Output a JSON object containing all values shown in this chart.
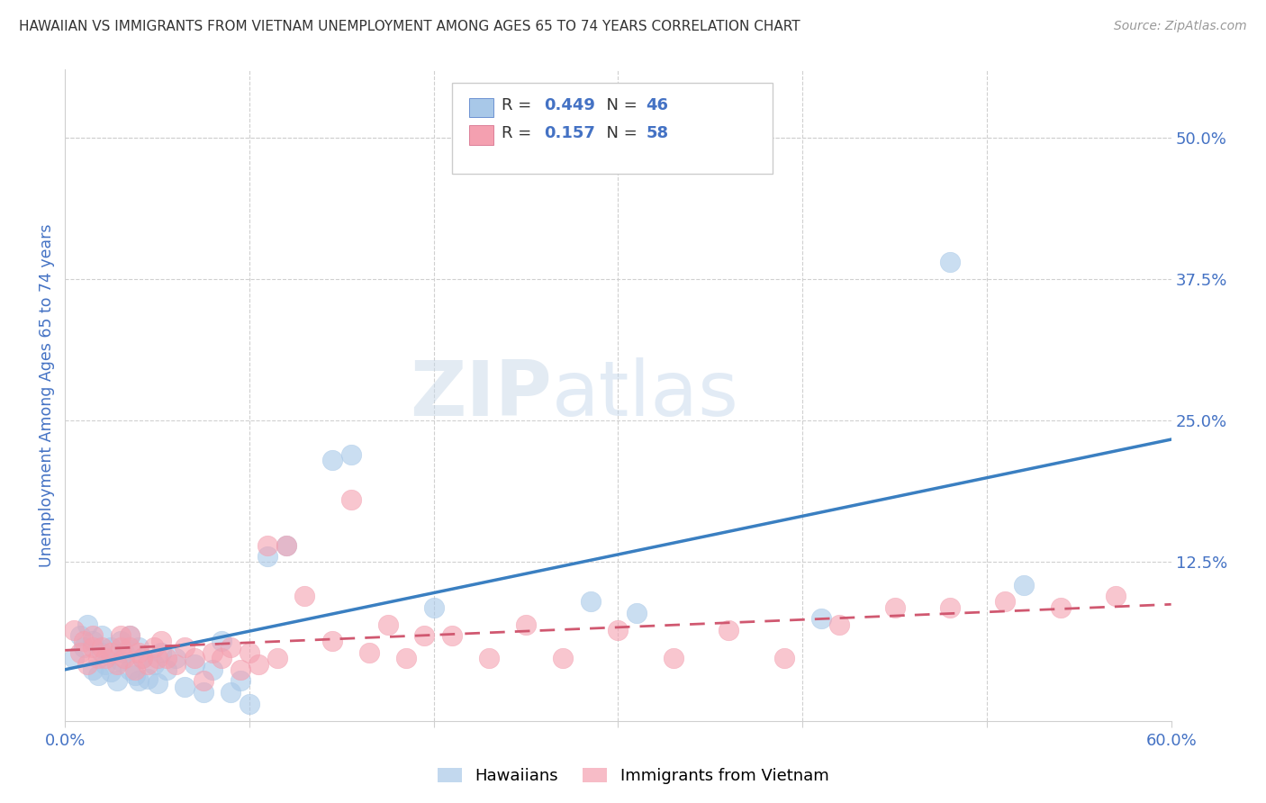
{
  "title": "HAWAIIAN VS IMMIGRANTS FROM VIETNAM UNEMPLOYMENT AMONG AGES 65 TO 74 YEARS CORRELATION CHART",
  "source": "Source: ZipAtlas.com",
  "ylabel": "Unemployment Among Ages 65 to 74 years",
  "xlim": [
    0.0,
    0.6
  ],
  "ylim": [
    -0.015,
    0.56
  ],
  "hawaiians_R": 0.449,
  "hawaiians_N": 46,
  "vietnam_R": 0.157,
  "vietnam_N": 58,
  "blue_color": "#a8c8e8",
  "blue_line_color": "#3a7fc1",
  "pink_color": "#f4a0b0",
  "pink_line_color": "#d05870",
  "hawaiians_x": [
    0.005,
    0.008,
    0.01,
    0.012,
    0.015,
    0.015,
    0.018,
    0.02,
    0.02,
    0.022,
    0.025,
    0.025,
    0.028,
    0.03,
    0.03,
    0.032,
    0.035,
    0.035,
    0.038,
    0.04,
    0.04,
    0.042,
    0.045,
    0.048,
    0.05,
    0.052,
    0.055,
    0.06,
    0.065,
    0.07,
    0.075,
    0.08,
    0.085,
    0.09,
    0.095,
    0.1,
    0.11,
    0.12,
    0.145,
    0.155,
    0.2,
    0.285,
    0.31,
    0.41,
    0.48,
    0.52
  ],
  "hawaiians_y": [
    0.04,
    0.06,
    0.05,
    0.07,
    0.03,
    0.055,
    0.025,
    0.045,
    0.06,
    0.035,
    0.028,
    0.05,
    0.02,
    0.038,
    0.055,
    0.045,
    0.03,
    0.06,
    0.025,
    0.02,
    0.05,
    0.04,
    0.022,
    0.035,
    0.018,
    0.045,
    0.03,
    0.04,
    0.015,
    0.035,
    0.01,
    0.03,
    0.055,
    0.01,
    0.02,
    0.0,
    0.13,
    0.14,
    0.215,
    0.22,
    0.085,
    0.09,
    0.08,
    0.075,
    0.39,
    0.105
  ],
  "vietnam_x": [
    0.005,
    0.008,
    0.01,
    0.012,
    0.015,
    0.015,
    0.018,
    0.02,
    0.022,
    0.025,
    0.028,
    0.03,
    0.03,
    0.032,
    0.035,
    0.035,
    0.038,
    0.04,
    0.042,
    0.045,
    0.048,
    0.05,
    0.052,
    0.055,
    0.06,
    0.065,
    0.07,
    0.075,
    0.08,
    0.085,
    0.09,
    0.095,
    0.1,
    0.105,
    0.11,
    0.115,
    0.12,
    0.13,
    0.145,
    0.155,
    0.165,
    0.175,
    0.185,
    0.195,
    0.21,
    0.23,
    0.25,
    0.27,
    0.3,
    0.33,
    0.36,
    0.39,
    0.42,
    0.45,
    0.48,
    0.51,
    0.54,
    0.57
  ],
  "vietnam_y": [
    0.065,
    0.045,
    0.055,
    0.035,
    0.05,
    0.06,
    0.04,
    0.05,
    0.04,
    0.045,
    0.035,
    0.05,
    0.06,
    0.04,
    0.05,
    0.06,
    0.03,
    0.045,
    0.04,
    0.035,
    0.05,
    0.04,
    0.055,
    0.04,
    0.035,
    0.05,
    0.04,
    0.02,
    0.045,
    0.04,
    0.05,
    0.03,
    0.045,
    0.035,
    0.14,
    0.04,
    0.14,
    0.095,
    0.055,
    0.18,
    0.045,
    0.07,
    0.04,
    0.06,
    0.06,
    0.04,
    0.07,
    0.04,
    0.065,
    0.04,
    0.065,
    0.04,
    0.07,
    0.085,
    0.085,
    0.09,
    0.085,
    0.095
  ],
  "watermark_zip": "ZIP",
  "watermark_atlas": "atlas",
  "background_color": "#ffffff",
  "grid_color": "#d0d0d0",
  "title_color": "#333333",
  "axis_label_color": "#4472c4",
  "right_tick_color": "#4472c4",
  "legend_R_color": "#4472c4",
  "legend_N_color": "#4472c4"
}
